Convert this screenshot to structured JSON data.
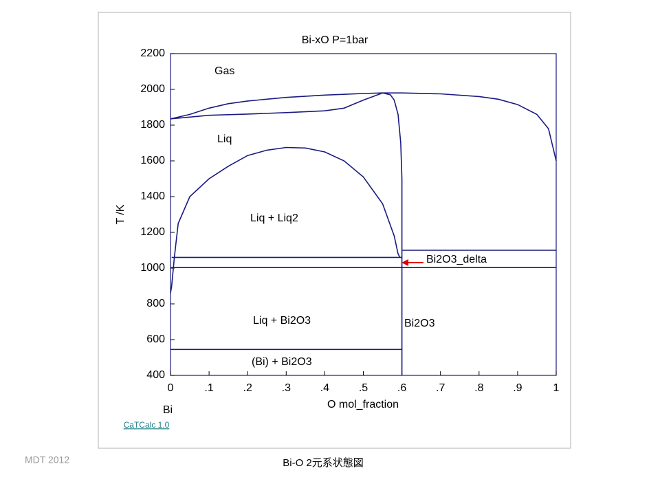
{
  "chart_data": {
    "type": "line",
    "title": "Bi-xO    P=1bar",
    "xlabel": "O mol_fraction",
    "ylabel": "T /K",
    "xlim": [
      0,
      1
    ],
    "ylim": [
      400,
      2200
    ],
    "xticks": [
      0,
      {
        "value": 0.1,
        "label": ".1"
      },
      {
        "value": 0.2,
        "label": ".2"
      },
      {
        "value": 0.3,
        "label": ".3"
      },
      {
        "value": 0.4,
        "label": ".4"
      },
      {
        "value": 0.5,
        "label": ".5"
      },
      {
        "value": 0.6,
        "label": ".6"
      },
      {
        "value": 0.7,
        "label": ".7"
      },
      {
        "value": 0.8,
        "label": ".8"
      },
      {
        "value": 0.9,
        "label": ".9"
      },
      1
    ],
    "yticks": [
      400,
      600,
      800,
      1000,
      1200,
      1400,
      1600,
      1800,
      2000,
      2200
    ],
    "grid": false,
    "color": "#1a1a80",
    "series": [
      {
        "x": [
          0,
          0.05,
          0.1,
          0.15,
          0.2,
          0.3,
          0.4,
          0.5,
          0.55,
          0.6,
          0.7,
          0.8,
          0.85,
          0.9,
          0.95,
          0.98,
          1.0
        ],
        "values": [
          1835,
          1860,
          1895,
          1920,
          1935,
          1955,
          1968,
          1977,
          1980,
          1980,
          1975,
          1960,
          1945,
          1915,
          1860,
          1780,
          1600
        ]
      },
      {
        "x": [
          0,
          0.05,
          0.1,
          0.2,
          0.3,
          0.4,
          0.45,
          0.5,
          0.55
        ],
        "values": [
          1835,
          1845,
          1855,
          1862,
          1870,
          1880,
          1895,
          1940,
          1980
        ]
      },
      {
        "x": [
          0.55,
          0.57,
          0.58,
          0.59,
          0.597,
          0.6,
          0.6
        ],
        "values": [
          1980,
          1970,
          1940,
          1860,
          1700,
          1500,
          400
        ]
      },
      {
        "x": [
          0,
          0.003,
          0.01,
          0.02,
          0.05,
          0.1,
          0.15,
          0.2,
          0.25,
          0.3,
          0.35,
          0.4,
          0.45,
          0.5,
          0.55,
          0.58,
          0.59,
          0.595
        ],
        "values": [
          860,
          900,
          1060,
          1250,
          1400,
          1500,
          1570,
          1630,
          1660,
          1675,
          1672,
          1650,
          1600,
          1510,
          1360,
          1180,
          1080,
          1060
        ]
      },
      {
        "x": [
          0.003,
          0.6
        ],
        "values": [
          1060,
          1060
        ]
      },
      {
        "x": [
          0,
          1
        ],
        "values": [
          1003,
          1003
        ]
      },
      {
        "x": [
          0.6,
          1
        ],
        "values": [
          1100,
          1100
        ]
      },
      {
        "x": [
          0,
          0.6
        ],
        "values": [
          545,
          545
        ]
      }
    ],
    "annotations": [
      "Gas",
      "Liq",
      "Liq + Liq2",
      "Liq + Bi2O3",
      "(Bi) + Bi2O3",
      "Bi2O3",
      "Bi2O3_delta",
      "Bi"
    ]
  },
  "footer": {
    "software": "CaTCalc 1.0",
    "credit": "MDT   2012",
    "caption": "Bi-O 2元系状態図"
  }
}
